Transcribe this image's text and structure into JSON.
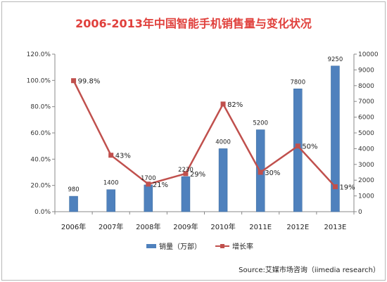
{
  "chart_data": {
    "type": "bar+line",
    "title": "2006-2013年中国智能手机销售量与变化状况",
    "categories": [
      "2006年",
      "2007年",
      "2008年",
      "2009年",
      "2010年",
      "2011E",
      "2012E",
      "2013E"
    ],
    "series": [
      {
        "name": "销量（万部）",
        "type": "bar",
        "axis": "right",
        "color": "#4f81bd",
        "values": [
          980,
          1400,
          1700,
          2230,
          4000,
          5200,
          7800,
          9250
        ],
        "labels": [
          "980",
          "1400",
          "1700",
          "2230",
          "4000",
          "5200",
          "7800",
          "9250"
        ]
      },
      {
        "name": "增长率",
        "type": "line",
        "axis": "left",
        "color": "#c0504d",
        "values": [
          99.8,
          43,
          21,
          29,
          82,
          30,
          50,
          19
        ],
        "labels": [
          "99.8%",
          "43%",
          "21%",
          "29%",
          "82%",
          "30%",
          "50%",
          "19%"
        ]
      }
    ],
    "y_left": {
      "min": 0,
      "max": 120,
      "step": 20,
      "ticks": [
        "0.0%",
        "20.0%",
        "40.0%",
        "60.0%",
        "80.0%",
        "100.0%",
        "120.0%"
      ]
    },
    "y_right": {
      "min": 0,
      "max": 10000,
      "step": 1000,
      "ticks": [
        "0",
        "1000",
        "2000",
        "3000",
        "4000",
        "5000",
        "6000",
        "7000",
        "8000",
        "9000",
        "10000"
      ]
    },
    "grid": false,
    "legend": {
      "position": "bottom",
      "items": [
        "销量（万部）",
        "增长率"
      ]
    },
    "source": "Source:艾媒市场咨询（iimedia research）"
  }
}
